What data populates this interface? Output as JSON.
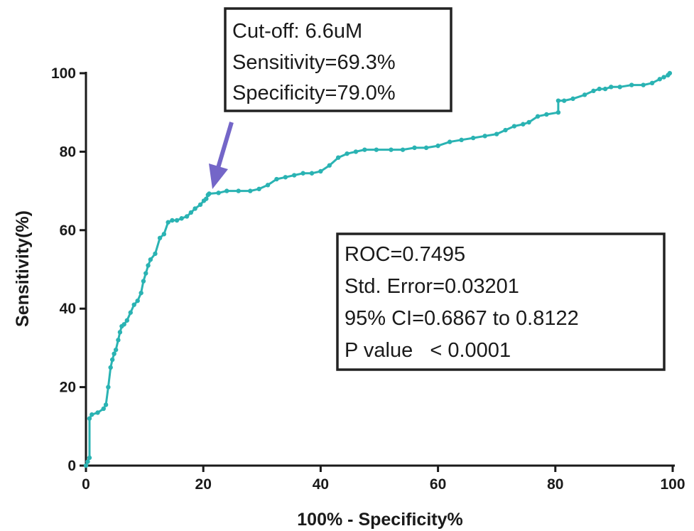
{
  "chart_data": {
    "type": "line",
    "title": "",
    "xlabel": "100%  - Specificity%",
    "ylabel": "Sensitivity(%)",
    "xlim": [
      0,
      100
    ],
    "ylim": [
      0,
      100
    ],
    "x_ticks": [
      "0",
      "20",
      "40",
      "60",
      "80",
      "100"
    ],
    "y_ticks": [
      "0",
      "20",
      "40",
      "60",
      "80",
      "100"
    ],
    "series_color": "#2ab3b3",
    "arrow_color": "#7466c8",
    "grid": false,
    "legend": "none",
    "series": [
      {
        "x": [
          0,
          0.3,
          0.6,
          0.6,
          1.0,
          2.0,
          3.0,
          3.4,
          3.8,
          4.2,
          4.5,
          4.8,
          5.1,
          5.5,
          5.8,
          6.1,
          6.5,
          7.0,
          7.6,
          8.2,
          8.8,
          9.4,
          9.8,
          10.2,
          10.6,
          11.0,
          11.8,
          12.6,
          13.3,
          14.0,
          14.7,
          15.5,
          16.3,
          17.2,
          17.9,
          18.6,
          19.5,
          20.1,
          20.5,
          20.8,
          21.0,
          22.6,
          24.0,
          26.0,
          28.0,
          29.5,
          31.0,
          32.5,
          34.0,
          35.5,
          37.0,
          38.5,
          40.0,
          41.5,
          43.0,
          44.5,
          46.0,
          47.5,
          49.5,
          52.0,
          54.0,
          56.0,
          58.0,
          60.0,
          62.0,
          64.0,
          66.0,
          68.0,
          70.0,
          71.5,
          73.0,
          74.5,
          75.5,
          77.0,
          78.5,
          80.5,
          80.5,
          81.5,
          83.0,
          85.0,
          86.5,
          87.5,
          88.5,
          89.5,
          91.0,
          93.0,
          95.0,
          96.5,
          97.8,
          98.5,
          99.2,
          99.5
        ],
        "y": [
          0,
          1,
          2,
          12,
          13,
          13.5,
          14.5,
          15.5,
          20,
          25,
          27,
          28.5,
          29.5,
          32,
          34,
          35.5,
          36,
          37,
          39,
          41,
          42,
          44,
          47,
          49,
          51,
          52.5,
          54,
          58,
          59,
          62,
          62.5,
          62.5,
          63,
          63.5,
          64.5,
          65.5,
          66.5,
          67.5,
          68,
          69,
          69.3,
          69.5,
          70,
          70,
          70,
          70.5,
          71.5,
          73,
          73.5,
          74,
          74.5,
          74.5,
          75,
          76.5,
          78.5,
          79.5,
          80,
          80.5,
          80.5,
          80.5,
          80.5,
          81,
          81,
          81.5,
          82.5,
          83,
          83.5,
          84,
          84.5,
          85.5,
          86.5,
          87,
          87.5,
          89,
          89.5,
          90,
          93,
          93,
          93.5,
          94.5,
          95.5,
          96,
          96,
          96.5,
          96.5,
          97,
          97,
          97.5,
          98.5,
          99,
          99.5,
          100
        ]
      }
    ],
    "annotations": {
      "cutoff_box": [
        "Cut-off: 6.6uM",
        "Sensitivity=69.3%",
        "Specificity=79.0%"
      ],
      "cutoff_point": {
        "x": 21.0,
        "y": 69.3
      },
      "stats_box": [
        "ROC=0.7495",
        "Std. Error=0.03201",
        "95% CI=0.6867 to 0.8122",
        "P value   < 0.0001"
      ]
    }
  }
}
